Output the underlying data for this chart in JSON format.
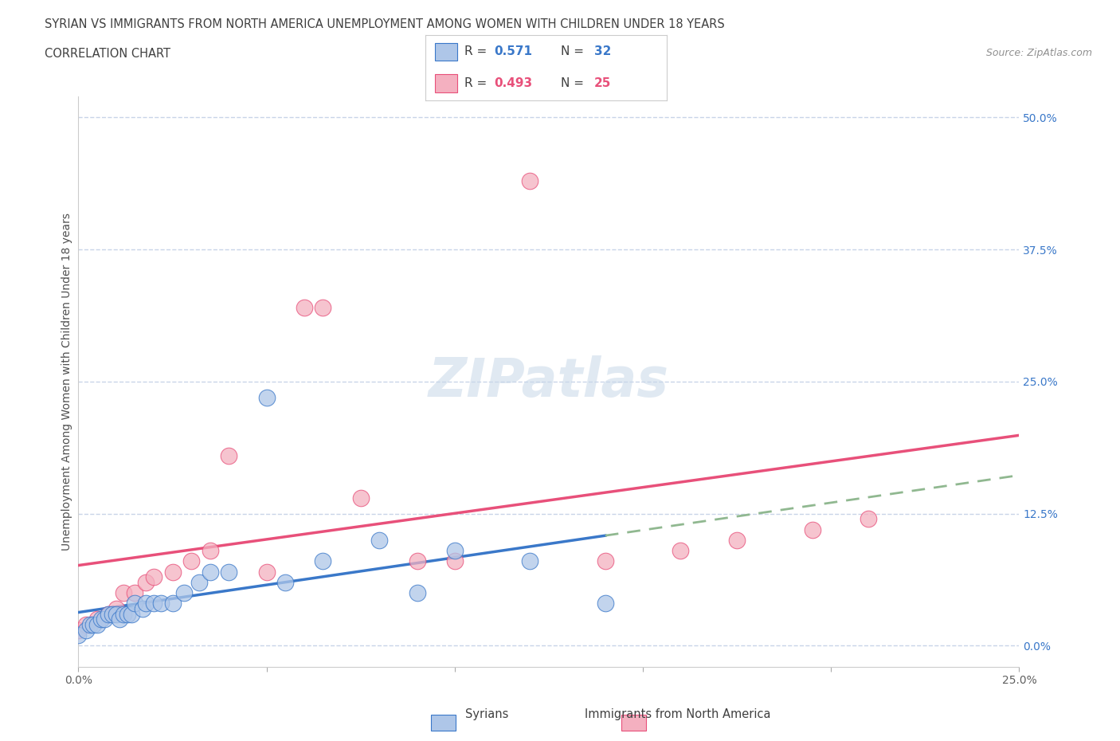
{
  "title_line1": "SYRIAN VS IMMIGRANTS FROM NORTH AMERICA UNEMPLOYMENT AMONG WOMEN WITH CHILDREN UNDER 18 YEARS",
  "title_line2": "CORRELATION CHART",
  "source": "Source: ZipAtlas.com",
  "ylabel": "Unemployment Among Women with Children Under 18 years",
  "legend_label1": "Syrians",
  "legend_label2": "Immigrants from North America",
  "R1": 0.571,
  "N1": 32,
  "R2": 0.493,
  "N2": 25,
  "color1": "#aec6e8",
  "color2": "#f4b0c0",
  "line_color1": "#3a78c9",
  "line_color2": "#e8507a",
  "dash_color": "#90b890",
  "xlim": [
    0.0,
    0.25
  ],
  "ylim": [
    -0.02,
    0.52
  ],
  "xticks": [
    0.0,
    0.05,
    0.1,
    0.15,
    0.2,
    0.25
  ],
  "yticks": [
    0.0,
    0.125,
    0.25,
    0.375,
    0.5
  ],
  "ytick_labels": [
    "0.0%",
    "12.5%",
    "25.0%",
    "37.5%",
    "50.0%"
  ],
  "xtick_labels": [
    "0.0%",
    "",
    "",
    "",
    "",
    "25.0%"
  ],
  "background_color": "#ffffff",
  "grid_color": "#c8d4e8",
  "title_color": "#404040",
  "syrians_x": [
    0.0,
    0.002,
    0.003,
    0.004,
    0.005,
    0.006,
    0.007,
    0.008,
    0.009,
    0.01,
    0.011,
    0.012,
    0.013,
    0.014,
    0.015,
    0.017,
    0.018,
    0.02,
    0.022,
    0.025,
    0.028,
    0.032,
    0.035,
    0.04,
    0.05,
    0.055,
    0.065,
    0.08,
    0.09,
    0.1,
    0.12,
    0.14
  ],
  "syrians_y": [
    0.01,
    0.015,
    0.02,
    0.02,
    0.02,
    0.025,
    0.025,
    0.03,
    0.03,
    0.03,
    0.025,
    0.03,
    0.03,
    0.03,
    0.04,
    0.035,
    0.04,
    0.04,
    0.04,
    0.04,
    0.05,
    0.06,
    0.07,
    0.07,
    0.235,
    0.06,
    0.08,
    0.1,
    0.05,
    0.09,
    0.08,
    0.04
  ],
  "north_america_x": [
    0.0,
    0.002,
    0.005,
    0.008,
    0.01,
    0.012,
    0.015,
    0.018,
    0.02,
    0.025,
    0.03,
    0.035,
    0.04,
    0.05,
    0.06,
    0.065,
    0.075,
    0.09,
    0.1,
    0.12,
    0.14,
    0.16,
    0.175,
    0.195,
    0.21
  ],
  "north_america_y": [
    0.015,
    0.02,
    0.025,
    0.03,
    0.035,
    0.05,
    0.05,
    0.06,
    0.065,
    0.07,
    0.08,
    0.09,
    0.18,
    0.07,
    0.32,
    0.32,
    0.14,
    0.08,
    0.08,
    0.44,
    0.08,
    0.09,
    0.1,
    0.11,
    0.12
  ]
}
